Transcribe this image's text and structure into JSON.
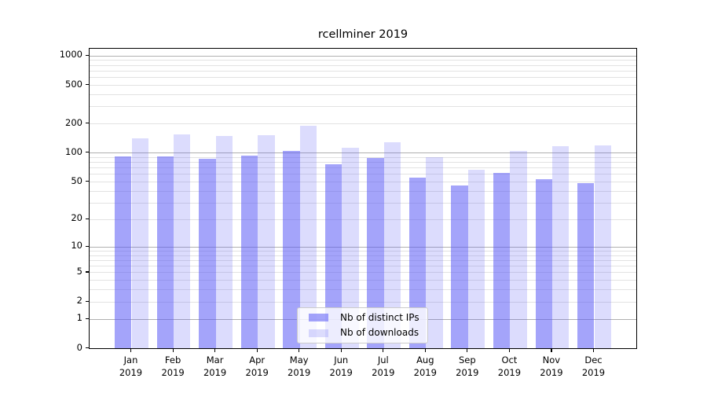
{
  "figure": {
    "title": "rcellminer 2019"
  },
  "chart_data": {
    "type": "bar",
    "title": "rcellminer 2019",
    "categories": [
      "Jan",
      "Feb",
      "Mar",
      "Apr",
      "May",
      "Jun",
      "Jul",
      "Aug",
      "Sep",
      "Oct",
      "Nov",
      "Dec"
    ],
    "x_tick_second_line": "2019",
    "series": [
      {
        "name": "Nb of distinct IPs",
        "values": [
          92,
          91,
          87,
          93,
          105,
          76,
          89,
          55,
          46,
          62,
          53,
          48
        ],
        "color": "rgba(90,90,245,0.55)"
      },
      {
        "name": "Nb of downloads",
        "values": [
          140,
          155,
          149,
          151,
          190,
          113,
          129,
          90,
          67,
          104,
          117,
          120
        ],
        "color": "rgba(90,90,245,0.21)"
      }
    ],
    "xlabel": "",
    "ylabel": "",
    "yscale": "log10(1+x)",
    "ylim": [
      0,
      1218
    ],
    "yticks": [
      1000,
      500,
      200,
      100,
      50,
      20,
      10,
      5,
      2,
      1,
      0
    ],
    "major_gridlines": [
      1,
      10,
      100,
      1000
    ],
    "minor_gridlines": [
      2,
      3,
      4,
      5,
      6,
      7,
      8,
      9,
      20,
      30,
      40,
      50,
      60,
      70,
      80,
      90,
      200,
      300,
      400,
      500,
      600,
      700,
      800,
      900
    ],
    "grid": true,
    "legend_position": "lower center"
  },
  "colors": {
    "ips_bar": "rgba(90,90,245,0.55)",
    "downloads_bar": "rgba(90,90,245,0.21)",
    "ips_bar_on_white": "#a8a8fa",
    "downloads_bar_on_white": "#dcdcf8",
    "major_grid": "#b0b0b0",
    "minor_grid": "#e2e2e2",
    "axis": "#000000",
    "text": "#000000",
    "legend_bg": "rgba(255,255,255,0.8)",
    "legend_border": "#cccccc"
  }
}
